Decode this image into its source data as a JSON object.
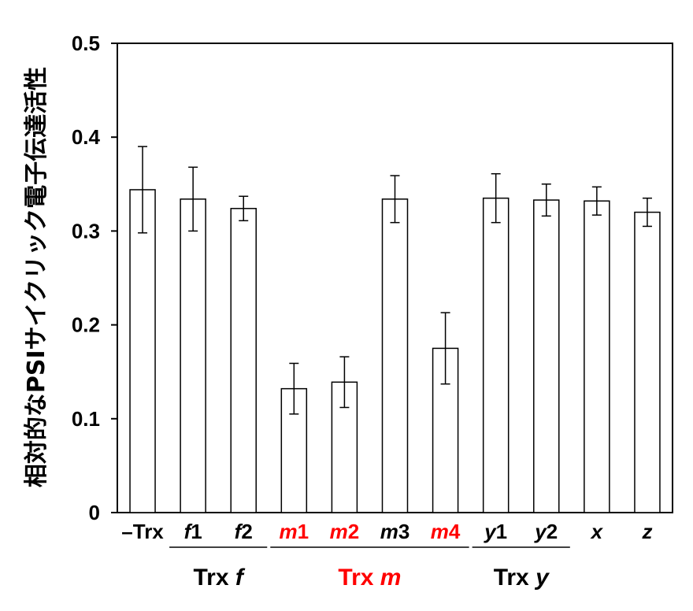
{
  "chart_data": {
    "type": "bar",
    "ylabel": "相対的なPSIサイクリック電子伝達活性",
    "ylim": [
      0,
      0.5
    ],
    "yticks": [
      "0",
      "0.1",
      "0.2",
      "0.3",
      "0.4",
      "0.5"
    ],
    "categories": [
      {
        "prefix": "–Trx",
        "italic": "",
        "suffix": "",
        "color": "#000000"
      },
      {
        "prefix": "",
        "italic": "f",
        "suffix": "1",
        "color": "#000000"
      },
      {
        "prefix": "",
        "italic": "f",
        "suffix": "2",
        "color": "#000000"
      },
      {
        "prefix": "",
        "italic": "m",
        "suffix": "1",
        "color": "#ff0000"
      },
      {
        "prefix": "",
        "italic": "m",
        "suffix": "2",
        "color": "#ff0000"
      },
      {
        "prefix": "",
        "italic": "m",
        "suffix": "3",
        "color": "#000000"
      },
      {
        "prefix": "",
        "italic": "m",
        "suffix": "4",
        "color": "#ff0000"
      },
      {
        "prefix": "",
        "italic": "y",
        "suffix": "1",
        "color": "#000000"
      },
      {
        "prefix": "",
        "italic": "y",
        "suffix": "2",
        "color": "#000000"
      },
      {
        "prefix": "",
        "italic": "x",
        "suffix": "",
        "color": "#000000"
      },
      {
        "prefix": "",
        "italic": "z",
        "suffix": "",
        "color": "#000000"
      }
    ],
    "values": [
      0.344,
      0.334,
      0.324,
      0.132,
      0.139,
      0.334,
      0.175,
      0.335,
      0.333,
      0.332,
      0.32
    ],
    "errors": [
      0.046,
      0.034,
      0.013,
      0.027,
      0.027,
      0.025,
      0.038,
      0.026,
      0.017,
      0.015,
      0.015
    ],
    "groups": [
      {
        "label": "Trx",
        "italic": "f",
        "color": "#000000",
        "start": 1,
        "end": 2
      },
      {
        "label": "Trx",
        "italic": "m",
        "color": "#ff0000",
        "start": 3,
        "end": 6
      },
      {
        "label": "Trx",
        "italic": "y",
        "color": "#000000",
        "start": 7,
        "end": 8
      }
    ],
    "grid": false,
    "bar_fill": "#ffffff",
    "bar_stroke": "#000000"
  }
}
